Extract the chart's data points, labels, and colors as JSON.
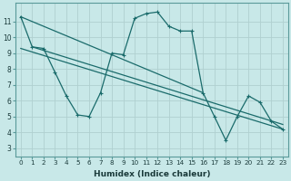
{
  "xlabel": "Humidex (Indice chaleur)",
  "bg_color": "#c8e8e8",
  "grid_color": "#b0d0d0",
  "line_color": "#1a6b6b",
  "xlim": [
    -0.5,
    23.5
  ],
  "ylim": [
    2.5,
    12.2
  ],
  "xticks": [
    0,
    1,
    2,
    3,
    4,
    5,
    6,
    7,
    8,
    9,
    10,
    11,
    12,
    13,
    14,
    15,
    16,
    17,
    18,
    19,
    20,
    21,
    22,
    23
  ],
  "yticks": [
    3,
    4,
    5,
    6,
    7,
    8,
    9,
    10,
    11
  ],
  "lines": [
    {
      "x": [
        0,
        1,
        2,
        3,
        4,
        5,
        6,
        7,
        8,
        9,
        10,
        11,
        12,
        13,
        14,
        15,
        16,
        17,
        18,
        19,
        20,
        21,
        22,
        23
      ],
      "y": [
        11.3,
        9.4,
        9.3,
        7.8,
        6.3,
        5.1,
        5.0,
        6.5,
        9.0,
        8.9,
        11.2,
        11.5,
        11.6,
        10.7,
        10.4,
        10.4,
        6.5,
        5.0,
        3.5,
        5.0,
        6.3,
        5.9,
        4.7,
        4.2
      ],
      "marker": true
    },
    {
      "x": [
        0,
        1,
        2,
        16,
        23
      ],
      "y": [
        11.3,
        9.4,
        9.3,
        6.5,
        4.2
      ],
      "marker": false
    },
    {
      "x": [
        1,
        2,
        16,
        23
      ],
      "y": [
        9.4,
        9.3,
        6.5,
        4.2
      ],
      "marker": false
    },
    {
      "x": [
        2,
        23
      ],
      "y": [
        9.3,
        4.2
      ],
      "marker": false
    }
  ]
}
